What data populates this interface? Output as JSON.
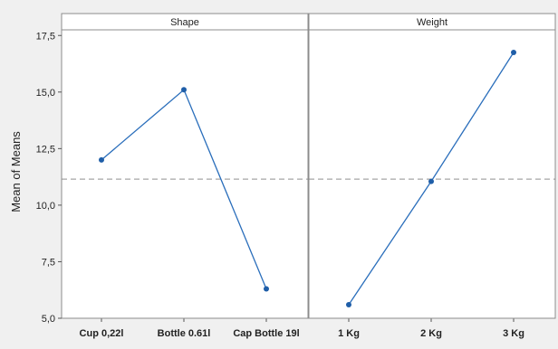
{
  "chart_data": {
    "type": "line",
    "ylabel": "Mean of Means",
    "ylim": [
      5.0,
      17.75
    ],
    "yticks": [
      "5,0",
      "7,5",
      "10,0",
      "12,5",
      "15,0",
      "17,5"
    ],
    "ytick_values": [
      5.0,
      7.5,
      10.0,
      12.5,
      15.0,
      17.5
    ],
    "reference_line": 11.15,
    "panels": [
      {
        "title": "Shape",
        "categories": [
          "Cup 0,22l",
          "Bottle 0.61l",
          "Cap Bottle 19l"
        ],
        "values": [
          12.0,
          15.1,
          6.3
        ]
      },
      {
        "title": "Weight",
        "categories": [
          "1 Kg",
          "2 Kg",
          "3 Kg"
        ],
        "values": [
          5.6,
          11.05,
          16.75
        ]
      }
    ],
    "colors": {
      "series": "#2a6ebb",
      "point": "#1f5ea8",
      "reference": "#a6a6a6",
      "frame": "#8c8c8c",
      "background": "#f0f0f0",
      "panel": "#ffffff"
    },
    "grid": false,
    "legend": "none"
  }
}
